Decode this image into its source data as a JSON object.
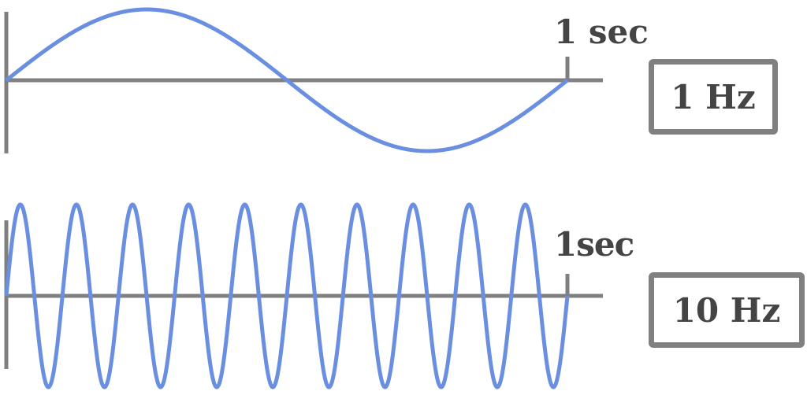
{
  "colors": {
    "wave": "#6b8fe0",
    "axis": "#808080",
    "text": "#444444"
  },
  "panels": [
    {
      "time_label": "1 sec",
      "frequency_label": "1 Hz",
      "cycles": 1
    },
    {
      "time_label": "1sec",
      "frequency_label": "10 Hz",
      "cycles": 10
    }
  ]
}
